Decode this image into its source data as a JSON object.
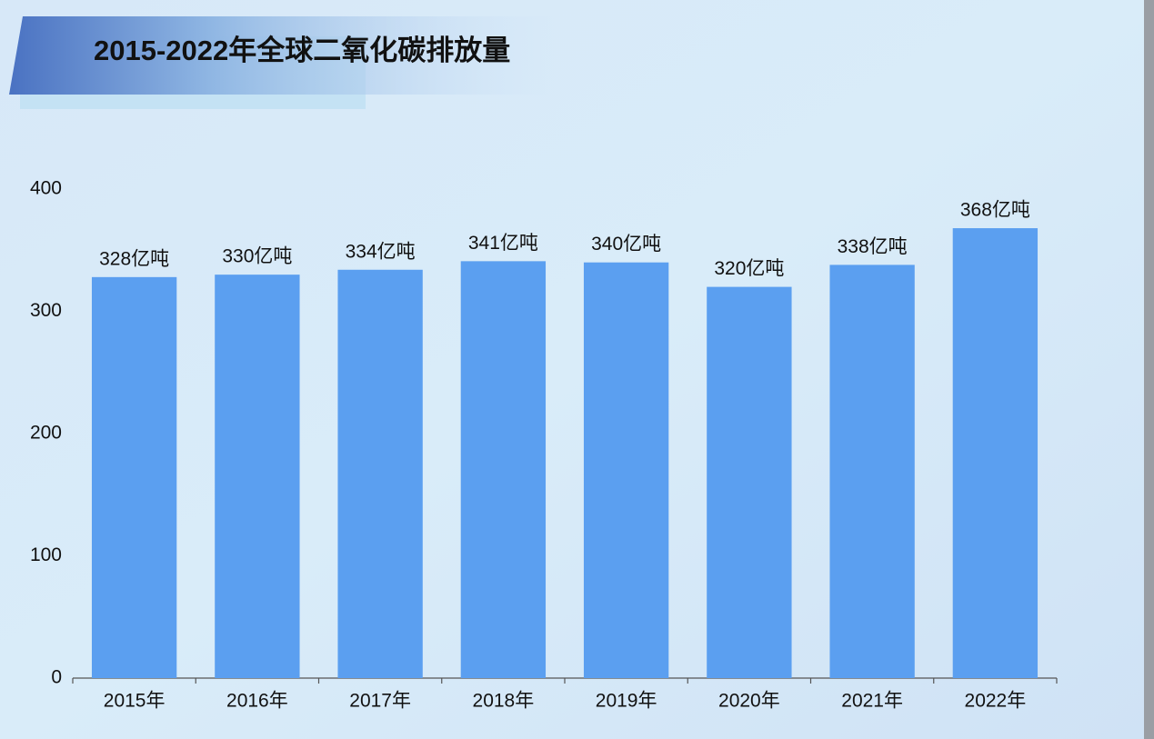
{
  "chart_data": {
    "type": "bar",
    "title": "2015-2022年全球二氧化碳排放量",
    "categories": [
      "2015年",
      "2016年",
      "2017年",
      "2018年",
      "2019年",
      "2020年",
      "2021年",
      "2022年"
    ],
    "values": [
      328,
      330,
      334,
      341,
      340,
      320,
      338,
      368
    ],
    "value_labels": [
      "328亿吨",
      "330亿吨",
      "334亿吨",
      "341亿吨",
      "340亿吨",
      "320亿吨",
      "338亿吨",
      "368亿吨"
    ],
    "color": "#5b9ff0",
    "ylim": [
      0,
      400
    ],
    "yticks": [
      0,
      100,
      200,
      300,
      400
    ],
    "grid": false
  }
}
